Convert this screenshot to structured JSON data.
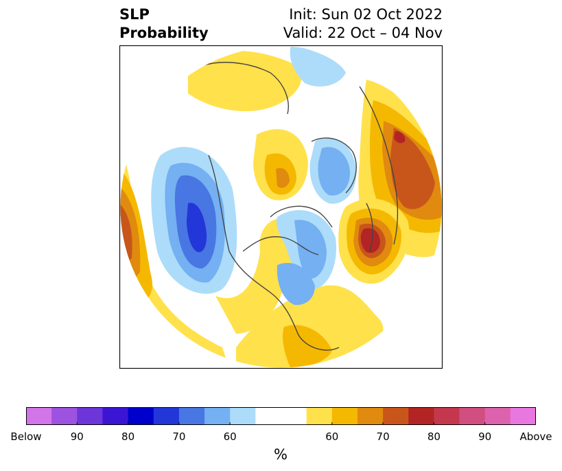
{
  "title": {
    "variable_line1": "SLP",
    "variable_line2": "Probability",
    "init": "Init: Sun 02 Oct 2022",
    "valid": "Valid: 22 Oct – 04 Nov"
  },
  "colorbar": {
    "unit": "%",
    "colors": [
      "#d275e8",
      "#9d53e0",
      "#6d36d8",
      "#3a16d4",
      "#0000cc",
      "#2336d8",
      "#4876e2",
      "#74b0f2",
      "#acdcfa",
      "#ffffff",
      "#ffffff",
      "#ffe14b",
      "#f5b800",
      "#e08a10",
      "#c8561a",
      "#b32424",
      "#c4384e",
      "#d14f80",
      "#dc62ae",
      "#e878e0"
    ],
    "ticks": [
      {
        "label": "Below",
        "index": 0
      },
      {
        "label": "90",
        "index": 2
      },
      {
        "label": "80",
        "index": 4
      },
      {
        "label": "70",
        "index": 6
      },
      {
        "label": "60",
        "index": 8
      },
      {
        "label": "60",
        "index": 12
      },
      {
        "label": "70",
        "index": 14
      },
      {
        "label": "80",
        "index": 16
      },
      {
        "label": "90",
        "index": 18
      },
      {
        "label": "Above",
        "index": 20
      }
    ]
  }
}
